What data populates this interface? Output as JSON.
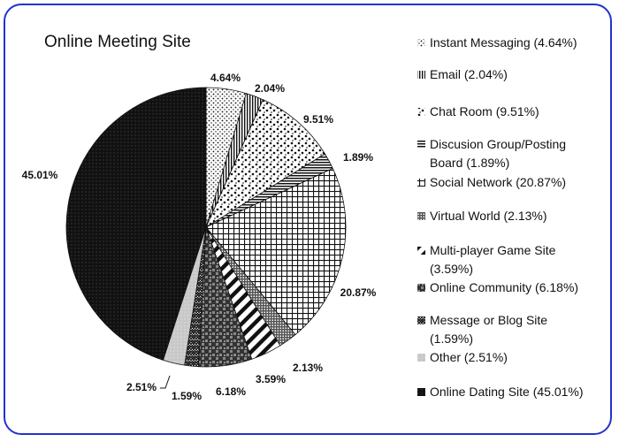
{
  "chart_data": {
    "type": "pie",
    "title": "Online Meeting Site",
    "legend_position": "right",
    "slices": [
      {
        "name": "Instant Messaging",
        "value": 4.64,
        "label": "4.64%",
        "legend": "Instant Messaging (4.64%)",
        "pattern": "dots-fine"
      },
      {
        "name": "Email",
        "value": 2.04,
        "label": "2.04%",
        "legend": "Email (2.04%)",
        "pattern": "vlines"
      },
      {
        "name": "Chat Room",
        "value": 9.51,
        "label": "9.51%",
        "legend": "Chat Room (9.51%)",
        "pattern": "confetti"
      },
      {
        "name": "Discusion Group/Posting Board",
        "value": 1.89,
        "label": "1.89%",
        "legend": [
          "Discusion Group/Posting",
          "Board (1.89%)"
        ],
        "pattern": "hlines"
      },
      {
        "name": "Social Network",
        "value": 20.87,
        "label": "20.87%",
        "legend": "Social Network (20.87%)",
        "pattern": "grid"
      },
      {
        "name": "Virtual World",
        "value": 2.13,
        "label": "2.13%",
        "legend": "Virtual World (2.13%)",
        "pattern": "fine-grid"
      },
      {
        "name": "Multi-player Game Site",
        "value": 3.59,
        "label": "3.59%",
        "legend": [
          "Multi-player Game Site",
          "(3.59%)"
        ],
        "pattern": "diag"
      },
      {
        "name": "Online Community",
        "value": 6.18,
        "label": "6.18%",
        "legend": "Online Community (6.18%)",
        "pattern": "checker"
      },
      {
        "name": "Message or Blog Site",
        "value": 1.59,
        "label": "1.59%",
        "legend": [
          "Message or Blog Site",
          "(1.59%)"
        ],
        "pattern": "zigzag"
      },
      {
        "name": "Other",
        "value": 2.51,
        "label": "2.51%",
        "legend": "Other (2.51%)",
        "pattern": "light"
      },
      {
        "name": "Online Dating Site",
        "value": 45.01,
        "label": "45.01%",
        "legend": "Online Dating Site (45.01%)",
        "pattern": "dense"
      }
    ],
    "colors": {
      "frame": "#2233cc",
      "ink": "#111111"
    }
  }
}
